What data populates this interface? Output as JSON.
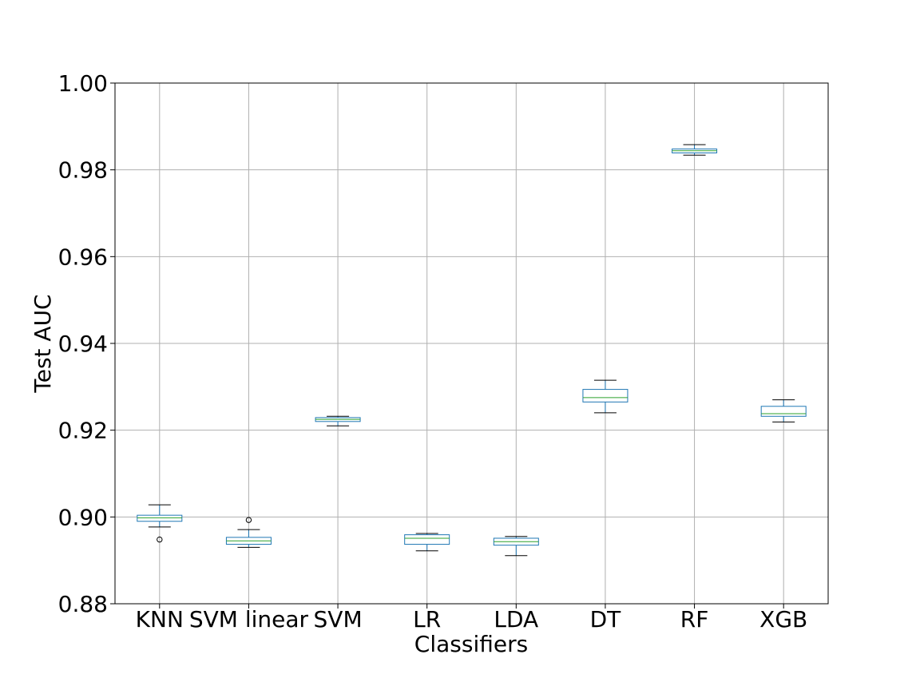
{
  "chart_data": {
    "type": "box",
    "xlabel": "Classifiers",
    "ylabel": "Test AUC",
    "ylim": [
      0.88,
      1.0
    ],
    "yticks": [
      "0.88",
      "0.90",
      "0.92",
      "0.94",
      "0.96",
      "0.98",
      "1.00"
    ],
    "grid": true,
    "colors": {
      "box": "#1f77b4",
      "median": "#2ca02c",
      "whisker": "#000000",
      "grid": "#b0b0b0"
    },
    "categories": [
      "KNN",
      "SVM linear",
      "SVM",
      "LR",
      "LDA",
      "DT",
      "RF",
      "XGB"
    ],
    "boxes": [
      {
        "label": "KNN",
        "whislo": 0.8977,
        "q1": 0.899,
        "med": 0.8998,
        "q3": 0.9004,
        "whishi": 0.9028,
        "fliers": [
          0.8948
        ]
      },
      {
        "label": "SVM linear",
        "whislo": 0.893,
        "q1": 0.8937,
        "med": 0.8945,
        "q3": 0.8953,
        "whishi": 0.8971,
        "fliers": [
          0.8993
        ]
      },
      {
        "label": "SVM",
        "whislo": 0.921,
        "q1": 0.922,
        "med": 0.9225,
        "q3": 0.9229,
        "whishi": 0.9232,
        "fliers": []
      },
      {
        "label": "LR",
        "whislo": 0.8922,
        "q1": 0.8937,
        "med": 0.8951,
        "q3": 0.8959,
        "whishi": 0.8962,
        "fliers": []
      },
      {
        "label": "LDA",
        "whislo": 0.8911,
        "q1": 0.8935,
        "med": 0.8943,
        "q3": 0.8951,
        "whishi": 0.8955,
        "fliers": []
      },
      {
        "label": "DT",
        "whislo": 0.924,
        "q1": 0.9265,
        "med": 0.9275,
        "q3": 0.9294,
        "whishi": 0.9315,
        "fliers": []
      },
      {
        "label": "RF",
        "whislo": 0.9834,
        "q1": 0.9839,
        "med": 0.9844,
        "q3": 0.9848,
        "whishi": 0.9858,
        "fliers": []
      },
      {
        "label": "XGB",
        "whislo": 0.9219,
        "q1": 0.9232,
        "med": 0.9238,
        "q3": 0.9255,
        "whishi": 0.927,
        "fliers": []
      }
    ]
  }
}
